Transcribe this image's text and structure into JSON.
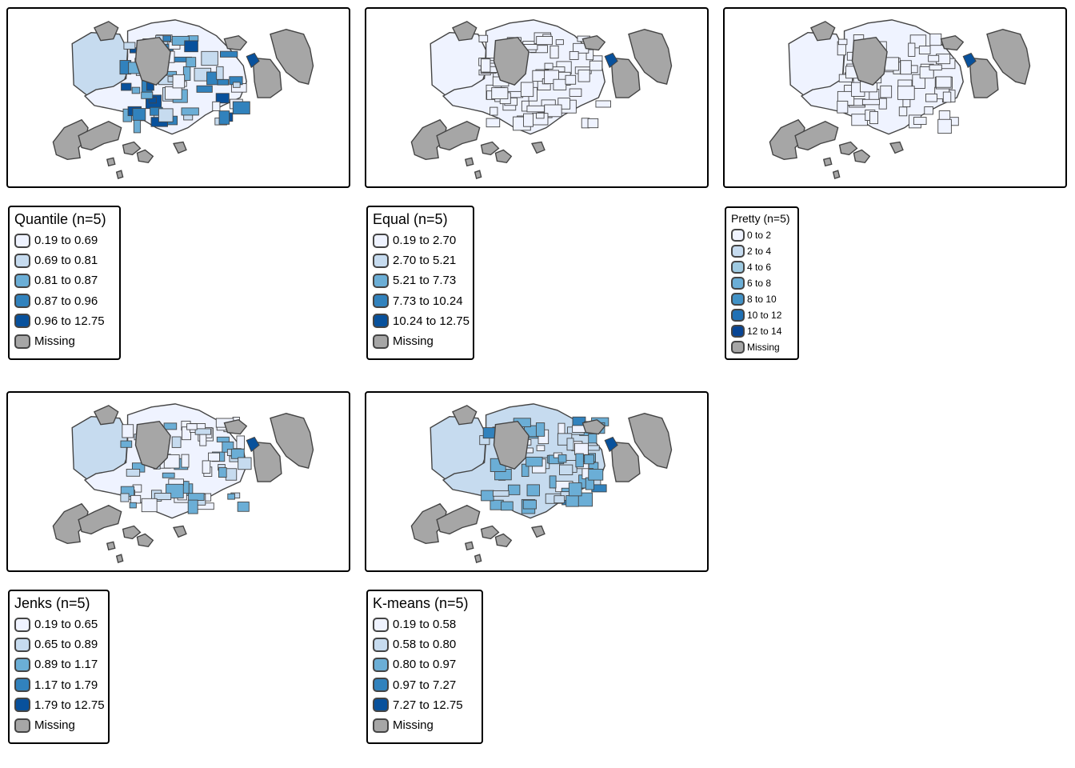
{
  "colors": {
    "class1": "#eff3ff",
    "class2": "#c6dbef",
    "class3": "#6baed6",
    "class4": "#3182bd",
    "class5": "#08519c",
    "pretty": [
      "#eff3ff",
      "#c6dbef",
      "#9ecae1",
      "#6baed6",
      "#4292c6",
      "#2171b5",
      "#084594"
    ],
    "missing": "#a6a6a6",
    "border": "#444444"
  },
  "panels": [
    {
      "id": "quantile",
      "title": "Quantile (n=5)",
      "legend": [
        "0.19 to 0.69",
        "0.69 to 0.81",
        "0.81 to 0.87",
        "0.87 to 0.96",
        "0.96 to 12.75",
        "Missing"
      ]
    },
    {
      "id": "equal",
      "title": "Equal (n=5)",
      "legend": [
        "0.19 to 2.70",
        "2.70 to 5.21",
        "5.21 to 7.73",
        "7.73 to 10.24",
        "10.24 to 12.75",
        "Missing"
      ]
    },
    {
      "id": "pretty",
      "title": "Pretty (n=5)",
      "legend": [
        "0 to 2",
        "2 to 4",
        "4 to 6",
        "6 to 8",
        "8 to 10",
        "10 to 12",
        "12 to 14",
        "Missing"
      ]
    },
    {
      "id": "jenks",
      "title": "Jenks (n=5)",
      "legend": [
        "0.19 to 0.65",
        "0.65 to 0.89",
        "0.89 to 1.17",
        "1.17 to 1.79",
        "1.79 to 12.75",
        "Missing"
      ]
    },
    {
      "id": "kmeans",
      "title": "K-means (n=5)",
      "legend": [
        "0.19 to 0.58",
        "0.58 to 0.80",
        "0.80 to 0.97",
        "0.97 to 7.27",
        "7.27 to 12.75",
        "Missing"
      ]
    }
  ]
}
